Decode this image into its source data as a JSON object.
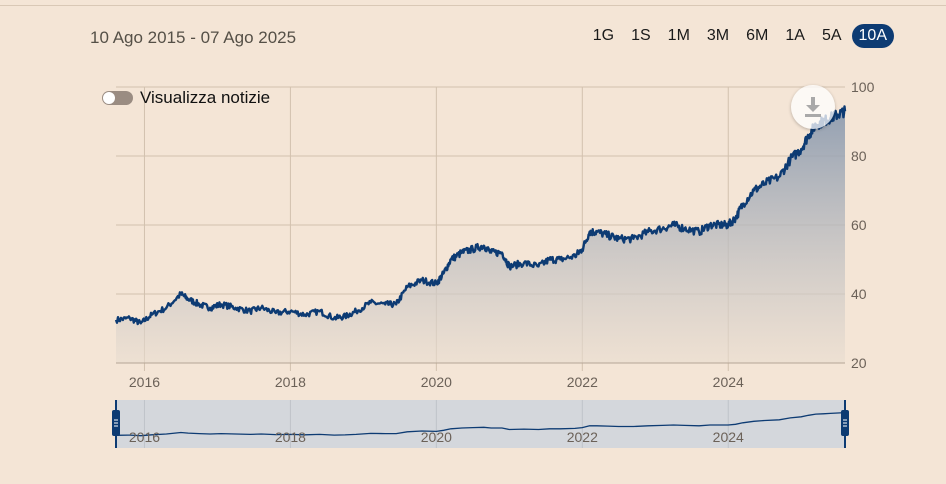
{
  "header": {
    "date_range": "10 Ago 2015 - 07 Ago 2025",
    "range_tabs": [
      {
        "label": "1G",
        "active": false
      },
      {
        "label": "1S",
        "active": false
      },
      {
        "label": "1M",
        "active": false
      },
      {
        "label": "3M",
        "active": false
      },
      {
        "label": "6M",
        "active": false
      },
      {
        "label": "1A",
        "active": false
      },
      {
        "label": "5A",
        "active": false
      },
      {
        "label": "10A",
        "active": true
      }
    ]
  },
  "news_toggle": {
    "label": "Visualizza notizie",
    "on": false
  },
  "download": {
    "icon": "download-icon"
  },
  "colors": {
    "line": "#0d3b73",
    "active_tab": "#0d3b73",
    "background": "#f4e5d6",
    "navigator_bg": "#d4d7dc"
  },
  "chart_data": {
    "type": "area",
    "title": "",
    "xlabel": "",
    "ylabel": "",
    "xlim": [
      2015.61,
      2025.6
    ],
    "ylim": [
      20,
      100
    ],
    "x_ticks": [
      "2016",
      "2018",
      "2020",
      "2022",
      "2024"
    ],
    "y_ticks": [
      "20",
      "40",
      "60",
      "80",
      "100"
    ],
    "grid": true,
    "series": [
      {
        "x": [
          2015.61,
          2015.8,
          2015.95,
          2016.1,
          2016.3,
          2016.5,
          2016.6,
          2016.75,
          2016.9,
          2017.05,
          2017.25,
          2017.45,
          2017.6,
          2017.8,
          2018.0,
          2018.2,
          2018.4,
          2018.6,
          2018.75,
          2018.9,
          2019.1,
          2019.3,
          2019.45,
          2019.6,
          2019.8,
          2020.0,
          2020.1,
          2020.2,
          2020.35,
          2020.5,
          2020.65,
          2020.75,
          2020.9,
          2021.0,
          2021.2,
          2021.4,
          2021.55,
          2021.7,
          2021.9,
          2022.0,
          2022.1,
          2022.2,
          2022.35,
          2022.5,
          2022.7,
          2022.9,
          2023.1,
          2023.25,
          2023.4,
          2023.6,
          2023.75,
          2023.9,
          2024.0,
          2024.1,
          2024.2,
          2024.35,
          2024.5,
          2024.7,
          2024.85,
          2025.0,
          2025.1,
          2025.2,
          2025.3,
          2025.4,
          2025.5,
          2025.6
        ],
        "y": [
          32.5,
          33,
          31.5,
          34,
          36,
          40,
          38.5,
          37,
          36,
          37,
          36,
          35,
          36,
          34.5,
          35,
          34,
          35,
          33,
          33.5,
          35,
          37.5,
          37,
          37,
          42,
          44,
          43,
          46,
          50,
          52,
          53,
          54,
          52,
          52,
          48,
          49,
          48,
          50,
          50,
          51,
          53,
          58,
          58,
          57,
          56,
          56,
          58,
          59,
          60,
          59,
          58,
          60,
          60,
          60,
          62,
          66,
          70,
          72,
          74,
          79,
          82,
          86,
          89,
          90,
          91,
          92,
          93
        ]
      }
    ],
    "navigator": {
      "x_ticks": [
        "2016",
        "2018",
        "2020",
        "2022",
        "2024"
      ]
    }
  }
}
